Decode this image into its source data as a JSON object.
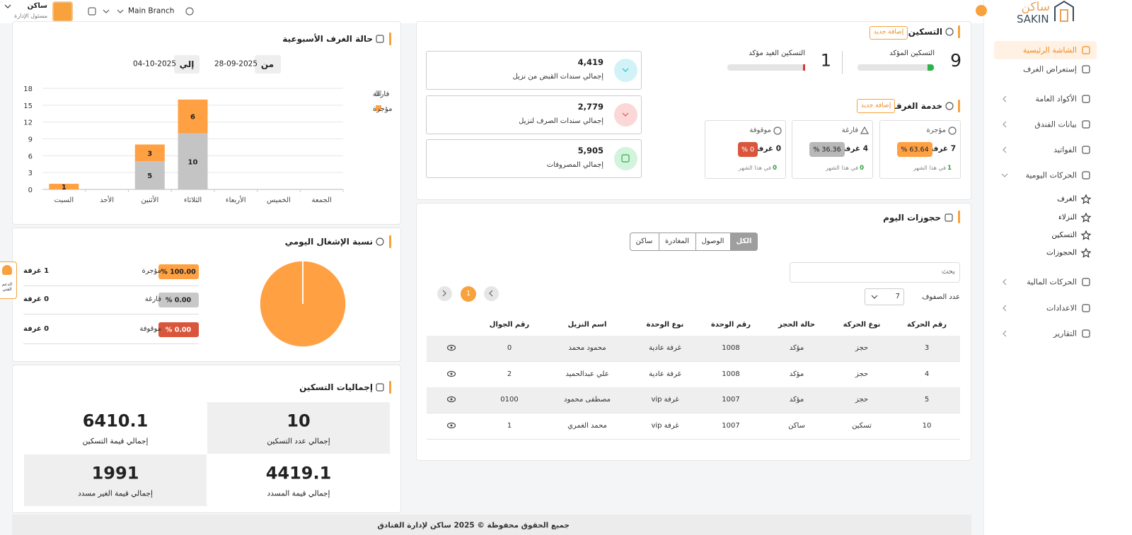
{
  "header": {
    "user_name": "ساكن",
    "user_role": "مسئول الإدارة",
    "branch": "Main Branch"
  },
  "sidebar": {
    "logo_ar": "ساكن",
    "logo_en": "SAKIN",
    "menu_top": [
      "الشاشة الرئيسية",
      "إستعراض الغرف",
      "الأكواد العامة",
      "بيانات الفندق",
      "الفواتيد",
      "الحركات اليومية"
    ],
    "submenu": [
      "الغرف",
      "النزلاء",
      "التسكين",
      "الحجوزات"
    ],
    "menu_bottom": [
      "الحركات المالية",
      "الاعدادات",
      "التقارير"
    ]
  },
  "housing": {
    "title": "التسكين",
    "add_button": "إضافة جديد",
    "confirmed": {
      "count": "9",
      "label": "التسكين المؤكد"
    },
    "unconfirmed": {
      "count": "1",
      "label": "التسكين الغيد مؤكد"
    }
  },
  "room_service": {
    "title": "خدمة الغرف",
    "add_button": "إضافة جديد",
    "boxes": [
      {
        "label": "مؤجرة",
        "rooms": "7 غرفة",
        "percent": "63.64 %",
        "change": "1",
        "period": "في هذا الشهر"
      },
      {
        "label": "فارغة",
        "rooms": "4 غرفة",
        "percent": "36.36 %",
        "change": "0",
        "period": "في هذا الشهر"
      },
      {
        "label": "موقوفة",
        "rooms": "0 غرفة",
        "percent": "0 %",
        "change": "0",
        "period": "في هذا الشهر"
      }
    ]
  },
  "stats": [
    {
      "value": "4,419",
      "label": "إجمالي سندات القبض من نزيل"
    },
    {
      "value": "2,779",
      "label": "إجمالي سندات الصرف لنزيل"
    },
    {
      "value": "5,905",
      "label": "إجمالي المصروفات"
    }
  ],
  "bookings": {
    "title": "حجوزات اليوم",
    "tabs": [
      "الكل",
      "الوصول",
      "المغادرة",
      "ساكن"
    ],
    "search_placeholder": "بحث",
    "rows_label": "عدد الصفوف",
    "rows_per_page": "7",
    "current_page": "1",
    "columns": [
      "رقم الحركة",
      "نوع الحركة",
      "حالة الحجز",
      "رقم الوحدة",
      "نوع الوحدة",
      "اسم النزيل",
      "رقم الجوال"
    ],
    "rows": [
      [
        "3",
        "حجز",
        "مؤكد",
        "1008",
        "غرفة عادية",
        "محمود محمد",
        "0"
      ],
      [
        "4",
        "حجز",
        "مؤكد",
        "1008",
        "غرفة عادية",
        "علي عبدالحميد",
        "2"
      ],
      [
        "5",
        "حجز",
        "مؤكد",
        "1007",
        "غرفة vip",
        "مصطفى محمود",
        "0100"
      ],
      [
        "10",
        "تسكين",
        "ساكن",
        "1007",
        "غرفة vip",
        "محمد الغمري",
        "1"
      ]
    ]
  },
  "weekly_rooms": {
    "title": "حالة الغرف الأسبوعية",
    "from_label": "من",
    "from_date": "28-09-2025",
    "to_label": "إلي",
    "to_date": "04-10-2025",
    "chart_data": {
      "type": "bar",
      "stacked": true,
      "categories": [
        "السبت",
        "الأحد",
        "الأثنين",
        "الثلاثاء",
        "الأربعاء",
        "الخميس",
        "الجمعة"
      ],
      "series": [
        {
          "name": "فارغة",
          "color": "#c4c4c4",
          "values": [
            0,
            0,
            5,
            10,
            0,
            0,
            0
          ]
        },
        {
          "name": "مؤجرة",
          "color": "#ffa143",
          "values": [
            1,
            0,
            3,
            6,
            0,
            0,
            0
          ]
        }
      ],
      "ylim": [
        0,
        18
      ],
      "yticks": [
        0,
        3,
        6,
        9,
        12,
        15,
        18
      ],
      "grid": true
    }
  },
  "daily_occupancy": {
    "title": "نسبة الإشغال اليومي",
    "chart_data": {
      "type": "pie",
      "categories": [
        "مؤجرة",
        "فارغة",
        "موقوفة"
      ],
      "values": [
        100,
        0,
        0
      ],
      "value_labels": [
        "100.00 %",
        "0.00 %",
        "0.00 %"
      ],
      "colors": [
        "#ffa143",
        "#c8c8c8",
        "#d9553b"
      ],
      "rooms": [
        "1 غرفة",
        "0 غرفة",
        "0 غرفة"
      ]
    }
  },
  "totals": {
    "title": "إجماليات التسكين",
    "cells": [
      {
        "value": "10",
        "label": "إجمالي عدد التسكين"
      },
      {
        "value": "6410.1",
        "label": "إجمالي قيمة التسكين"
      },
      {
        "value": "4419.1",
        "label": "إجمالي قيمة المسدد"
      },
      {
        "value": "1991",
        "label": "إجمالي قيمة الغير مسدد"
      }
    ]
  },
  "support": "الدعم الفني",
  "footer": "جميع الحقوق محفوظة © 2025 ساكن لإدارة الفنادق"
}
